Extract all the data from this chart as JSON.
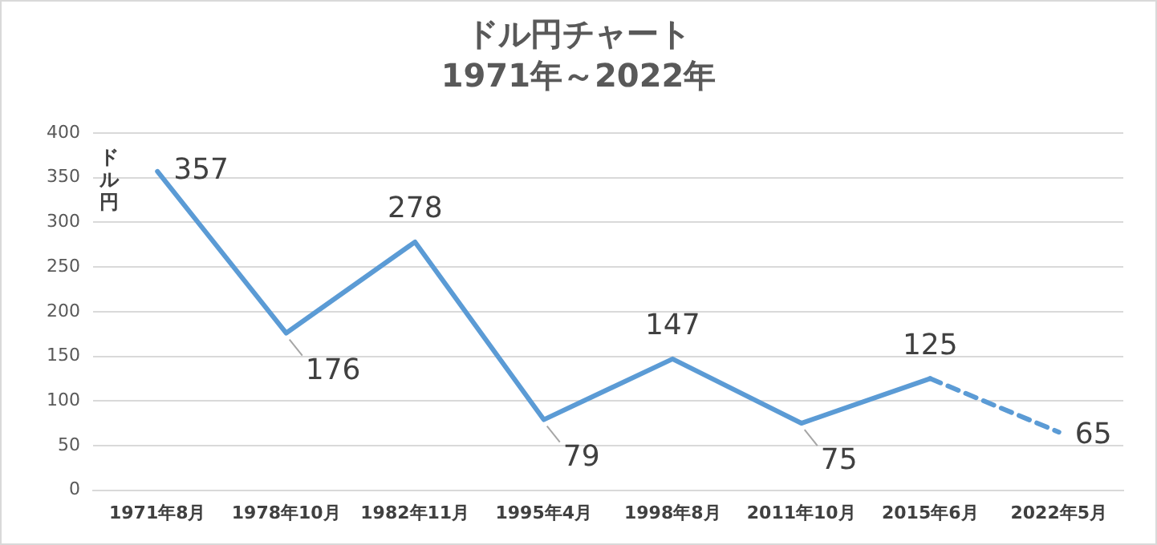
{
  "chart_data": {
    "type": "line",
    "title": "ドル円チャート",
    "subtitle": "1971年～2022年",
    "ylabel": "ドル円",
    "categories": [
      "1971年8月",
      "1978年10月",
      "1982年11月",
      "1995年4月",
      "1998年8月",
      "2011年10月",
      "2015年6月",
      "2022年5月"
    ],
    "series": [
      {
        "color": "#5b9bd5",
        "line_style": "solid",
        "values": [
          357,
          176,
          278,
          79,
          147,
          75,
          125,
          null
        ],
        "value_labels": [
          "357",
          "176",
          "278",
          "79",
          "147",
          "75",
          "125",
          null
        ]
      },
      {
        "color": "#5b9bd5",
        "line_style": "dashed",
        "values": [
          null,
          null,
          null,
          null,
          null,
          null,
          125,
          65
        ],
        "value_labels": [
          null,
          null,
          null,
          null,
          null,
          null,
          null,
          "65"
        ]
      }
    ],
    "ylim": [
      0,
      400
    ],
    "yticks": [
      0,
      50,
      100,
      150,
      200,
      250,
      300,
      350,
      400
    ],
    "grid": "y",
    "legend": false,
    "marker": "none"
  }
}
